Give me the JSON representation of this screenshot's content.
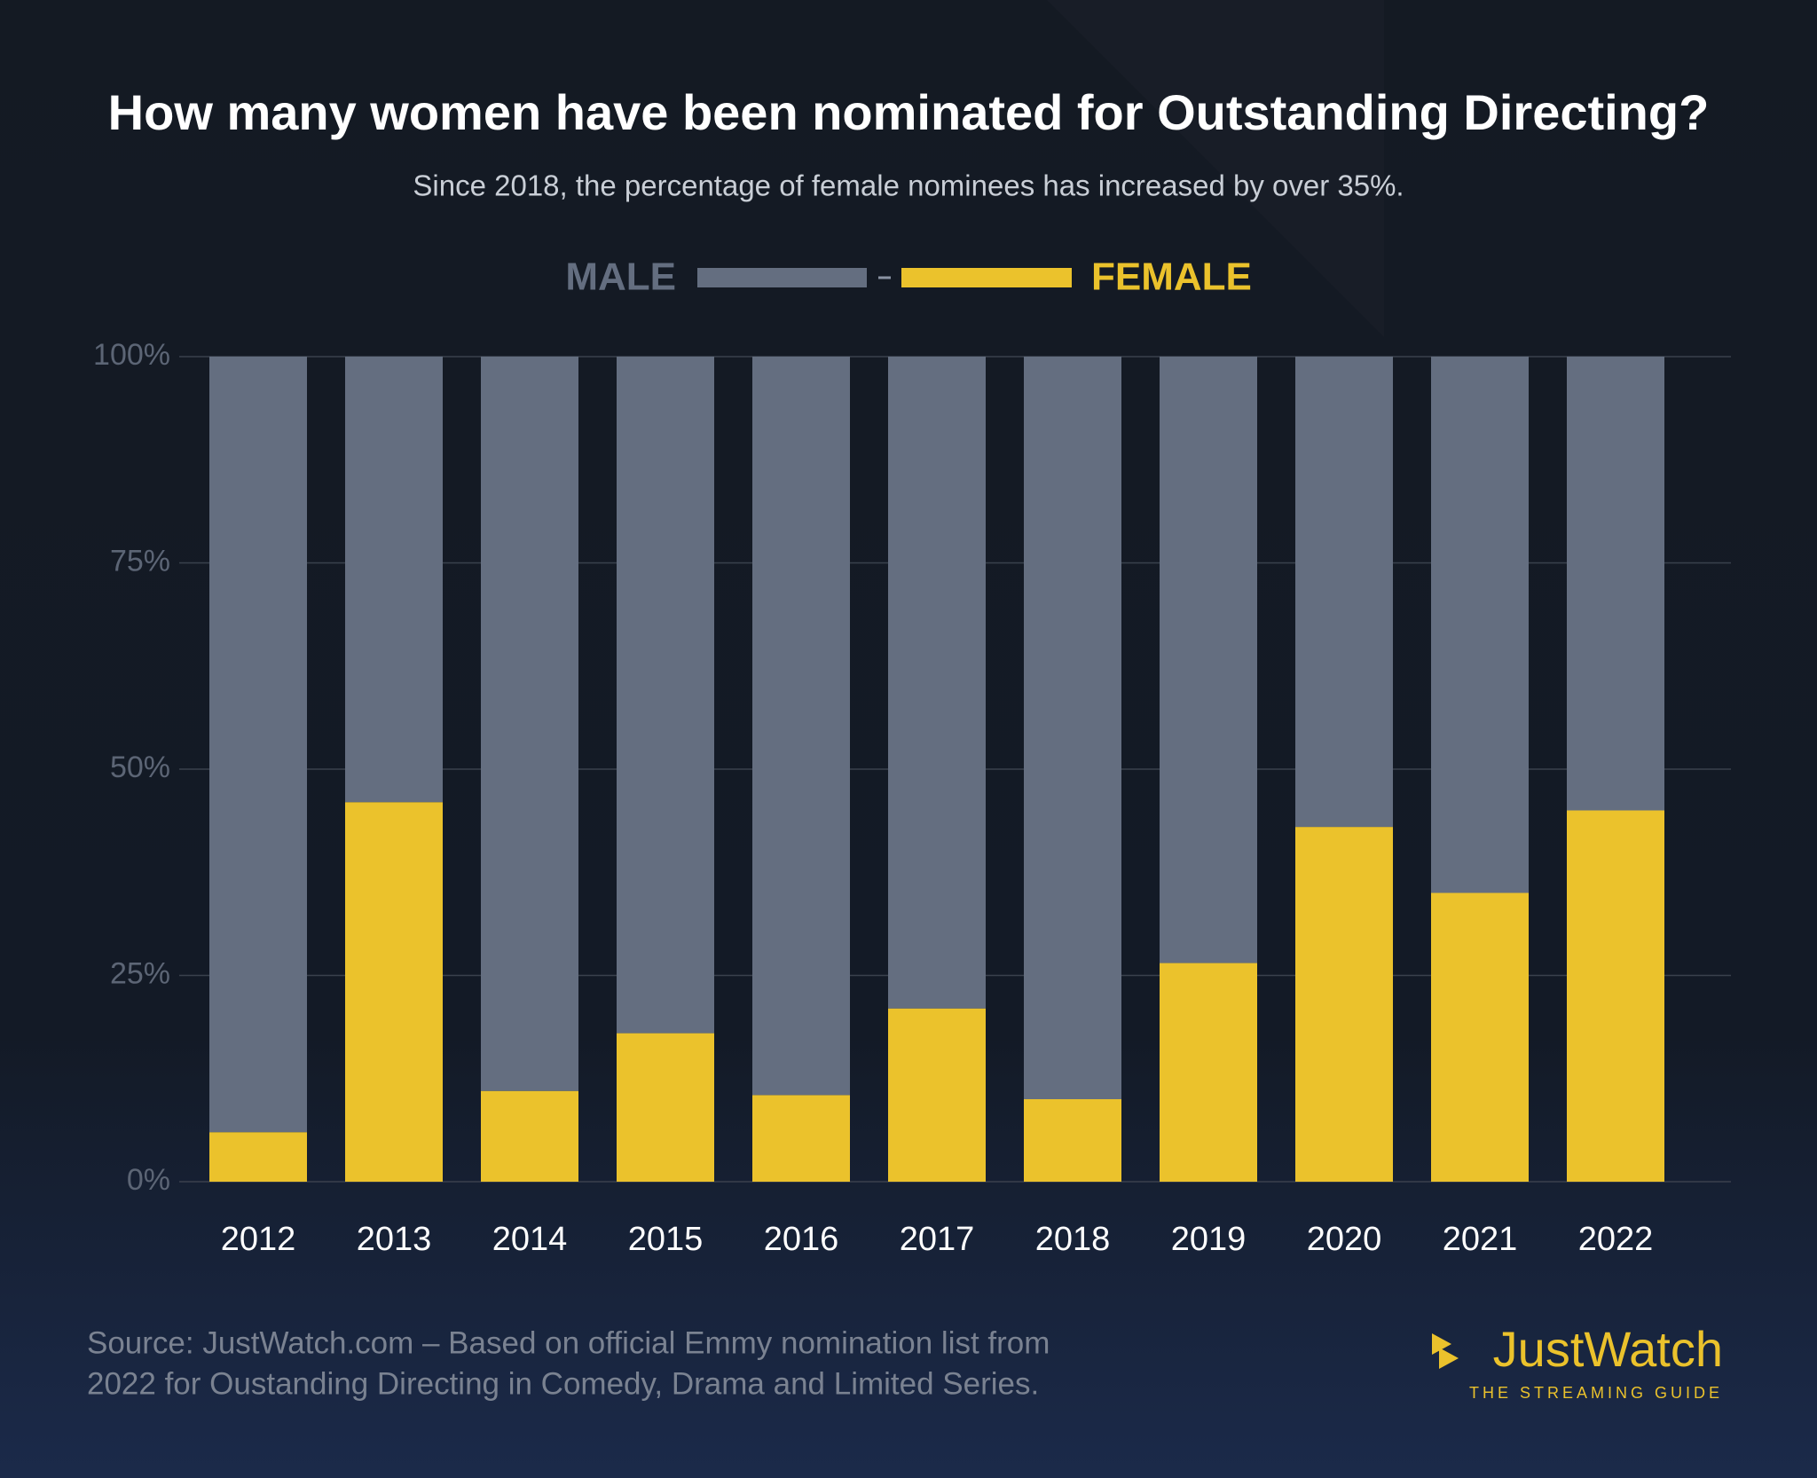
{
  "chart_data": {
    "type": "stacked_bar",
    "title": "How many women have been nominated for Outstanding Directing?",
    "subtitle": "Since 2018, the percentage of female nominees has increased by over 35%.",
    "categories": [
      "2012",
      "2013",
      "2014",
      "2015",
      "2016",
      "2017",
      "2018",
      "2019",
      "2020",
      "2021",
      "2022"
    ],
    "series": [
      {
        "name": "MALE",
        "color": "#646e80",
        "values": [
          94,
          54,
          89,
          82,
          89.5,
          79,
          90,
          73.5,
          57,
          65,
          55
        ]
      },
      {
        "name": "FEMALE",
        "color": "#ebc22c",
        "values": [
          6,
          46,
          11,
          18,
          10.5,
          21,
          10,
          26.5,
          43,
          35,
          45
        ]
      }
    ],
    "ylim": [
      0,
      100
    ],
    "yticks": [
      {
        "value": 0,
        "label": "0%"
      },
      {
        "value": 25,
        "label": "25%"
      },
      {
        "value": 50,
        "label": "50%"
      },
      {
        "value": 75,
        "label": "75%"
      },
      {
        "value": 100,
        "label": "100%"
      }
    ],
    "grid": true,
    "legend": "top",
    "source": [
      "Source: JustWatch.com – Based on official Emmy nomination list from",
      "2022 for Oustanding Directing in Comedy, Drama and Limited Series."
    ],
    "logo": {
      "name": "JustWatch",
      "tagline": "THE STREAMING GUIDE"
    }
  }
}
